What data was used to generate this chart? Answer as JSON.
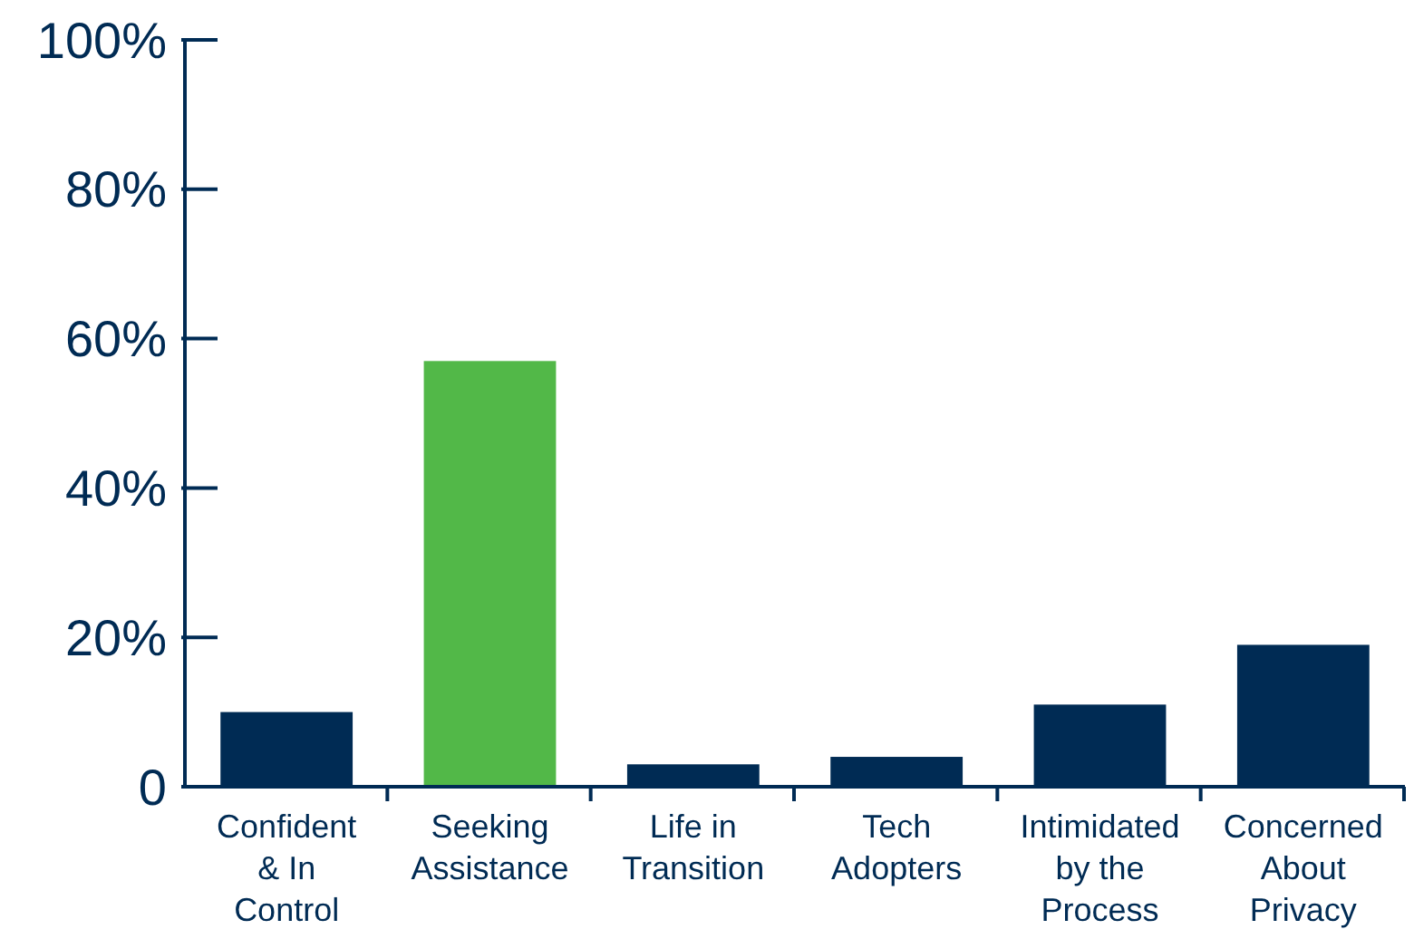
{
  "chart_data": {
    "type": "bar",
    "categories": [
      "Confident & In Control",
      "Seeking Assistance",
      "Life in Transition",
      "Tech Adopters",
      "Intimidated by the Process",
      "Concerned About Privacy"
    ],
    "values": [
      10,
      57,
      3,
      4,
      11,
      19
    ],
    "colors": [
      "#002b54",
      "#52b848",
      "#002b54",
      "#002b54",
      "#002b54",
      "#002b54"
    ],
    "ylim": [
      0,
      100
    ],
    "yticks": [
      0,
      {
        "value": 20,
        "label": "20%"
      },
      {
        "value": 40,
        "label": "40%"
      },
      {
        "value": 60,
        "label": "60%"
      },
      {
        "value": 80,
        "label": "80%"
      },
      {
        "value": 100,
        "label": "100%"
      }
    ],
    "grid": false
  }
}
